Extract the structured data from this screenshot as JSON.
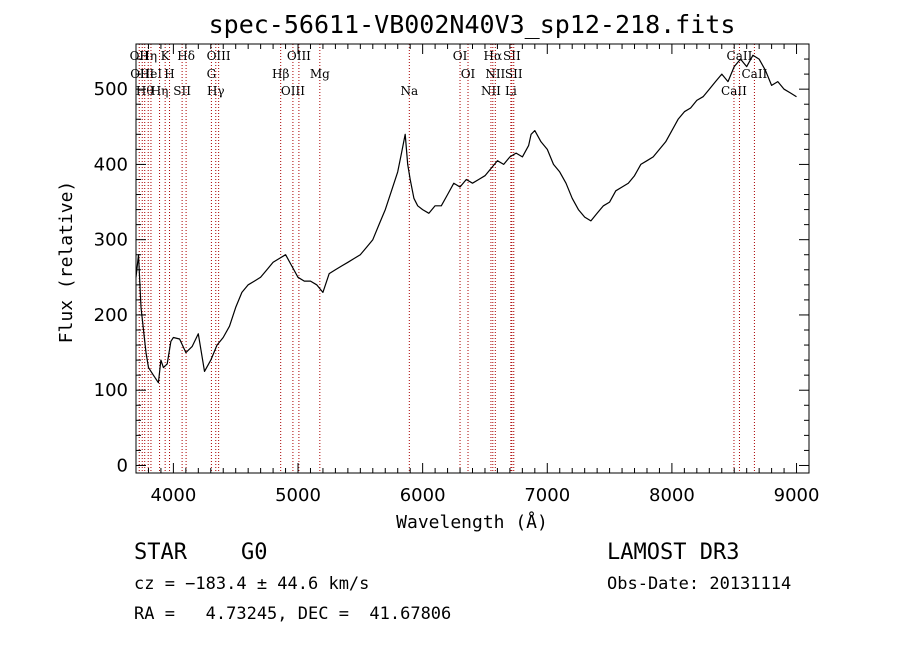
{
  "chart_data": {
    "type": "line",
    "title": "spec-56611-VB002N40V3_sp12-218.fits",
    "xlabel": "Wavelength (Å)",
    "ylabel": "Flux (relative)",
    "xlim": [
      3700,
      9100
    ],
    "ylim": [
      -10,
      560
    ],
    "xticks": [
      4000,
      5000,
      6000,
      7000,
      8000,
      9000
    ],
    "yticks": [
      0,
      100,
      200,
      300,
      400,
      500
    ],
    "series": [
      {
        "name": "spectrum",
        "x": [
          3700,
          3720,
          3740,
          3760,
          3780,
          3800,
          3820,
          3840,
          3860,
          3880,
          3900,
          3920,
          3950,
          3980,
          4000,
          4050,
          4100,
          4150,
          4200,
          4250,
          4300,
          4350,
          4400,
          4450,
          4500,
          4550,
          4600,
          4650,
          4700,
          4750,
          4800,
          4850,
          4900,
          4950,
          5000,
          5050,
          5100,
          5150,
          5200,
          5250,
          5300,
          5350,
          5400,
          5450,
          5500,
          5550,
          5600,
          5650,
          5700,
          5750,
          5800,
          5830,
          5860,
          5880,
          5900,
          5930,
          5960,
          6000,
          6050,
          6100,
          6150,
          6200,
          6250,
          6300,
          6350,
          6400,
          6450,
          6500,
          6550,
          6600,
          6650,
          6700,
          6750,
          6800,
          6850,
          6870,
          6900,
          6950,
          7000,
          7050,
          7100,
          7150,
          7200,
          7250,
          7300,
          7350,
          7400,
          7450,
          7500,
          7550,
          7600,
          7650,
          7700,
          7750,
          7800,
          7850,
          7900,
          7950,
          8000,
          8050,
          8100,
          8150,
          8200,
          8250,
          8300,
          8350,
          8400,
          8450,
          8500,
          8550,
          8600,
          8650,
          8700,
          8750,
          8800,
          8850,
          8900,
          8950,
          9000
        ],
        "y": [
          250,
          280,
          210,
          180,
          150,
          130,
          125,
          120,
          115,
          110,
          140,
          130,
          135,
          165,
          170,
          168,
          150,
          158,
          175,
          125,
          140,
          160,
          170,
          185,
          210,
          230,
          240,
          245,
          250,
          260,
          270,
          275,
          280,
          265,
          250,
          245,
          245,
          240,
          230,
          255,
          260,
          265,
          270,
          275,
          280,
          290,
          300,
          320,
          340,
          365,
          390,
          415,
          440,
          400,
          380,
          355,
          345,
          340,
          335,
          345,
          345,
          360,
          375,
          370,
          380,
          375,
          380,
          385,
          395,
          405,
          400,
          410,
          415,
          410,
          425,
          440,
          445,
          430,
          420,
          400,
          390,
          375,
          355,
          340,
          330,
          325,
          335,
          345,
          350,
          365,
          370,
          375,
          385,
          400,
          405,
          410,
          420,
          430,
          445,
          460,
          470,
          475,
          485,
          490,
          500,
          510,
          520,
          510,
          530,
          540,
          530,
          545,
          540,
          525,
          505,
          510,
          500,
          495,
          490
        ]
      }
    ],
    "lines": [
      {
        "wl": 3726,
        "labels": [
          "OII"
        ]
      },
      {
        "wl": 3750,
        "labels": [
          "OIII"
        ]
      },
      {
        "wl": 3770,
        "labels": [
          "Hθ"
        ]
      },
      {
        "wl": 3798,
        "labels": [
          "Hη"
        ]
      },
      {
        "wl": 3820,
        "labels": [
          "HeI"
        ]
      },
      {
        "wl": 3889,
        "labels": [
          "Hη"
        ]
      },
      {
        "wl": 3934,
        "labels": [
          "K"
        ]
      },
      {
        "wl": 3969,
        "labels": [
          "H"
        ]
      },
      {
        "wl": 4070,
        "labels": [
          "SII"
        ]
      },
      {
        "wl": 4102,
        "labels": [
          "Hδ"
        ]
      },
      {
        "wl": 4305,
        "labels": [
          "G"
        ]
      },
      {
        "wl": 4340,
        "labels": [
          "Hγ"
        ]
      },
      {
        "wl": 4363,
        "labels": [
          "OIII"
        ]
      },
      {
        "wl": 4861,
        "labels": [
          "Hβ"
        ]
      },
      {
        "wl": 4959,
        "labels": [
          "OIII"
        ]
      },
      {
        "wl": 5007,
        "labels": [
          "OIII"
        ]
      },
      {
        "wl": 5175,
        "labels": [
          "Mg"
        ]
      },
      {
        "wl": 5893,
        "labels": [
          "Na"
        ]
      },
      {
        "wl": 6300,
        "labels": [
          "OI"
        ]
      },
      {
        "wl": 6364,
        "labels": [
          "OI"
        ]
      },
      {
        "wl": 6548,
        "labels": [
          "NII"
        ]
      },
      {
        "wl": 6563,
        "labels": [
          "Hα"
        ]
      },
      {
        "wl": 6583,
        "labels": [
          "NII"
        ]
      },
      {
        "wl": 6708,
        "labels": [
          "Li"
        ]
      },
      {
        "wl": 6716,
        "labels": [
          "SII"
        ]
      },
      {
        "wl": 6731,
        "labels": [
          "SII"
        ]
      },
      {
        "wl": 8498,
        "labels": [
          "CaII"
        ]
      },
      {
        "wl": 8542,
        "labels": [
          "CaII"
        ]
      },
      {
        "wl": 8662,
        "labels": [
          "CaII"
        ]
      }
    ]
  },
  "info": {
    "class": "STAR",
    "subclass": "G0",
    "survey": "LAMOST DR3",
    "cz": "cz = −183.4 ± 44.6 km/s",
    "obs_date": "Obs-Date: 20131114",
    "radec": "RA =   4.73245, DEC =  41.67806"
  },
  "colors": {
    "line_marker": "#aa0000",
    "spectrum": "#000000"
  }
}
